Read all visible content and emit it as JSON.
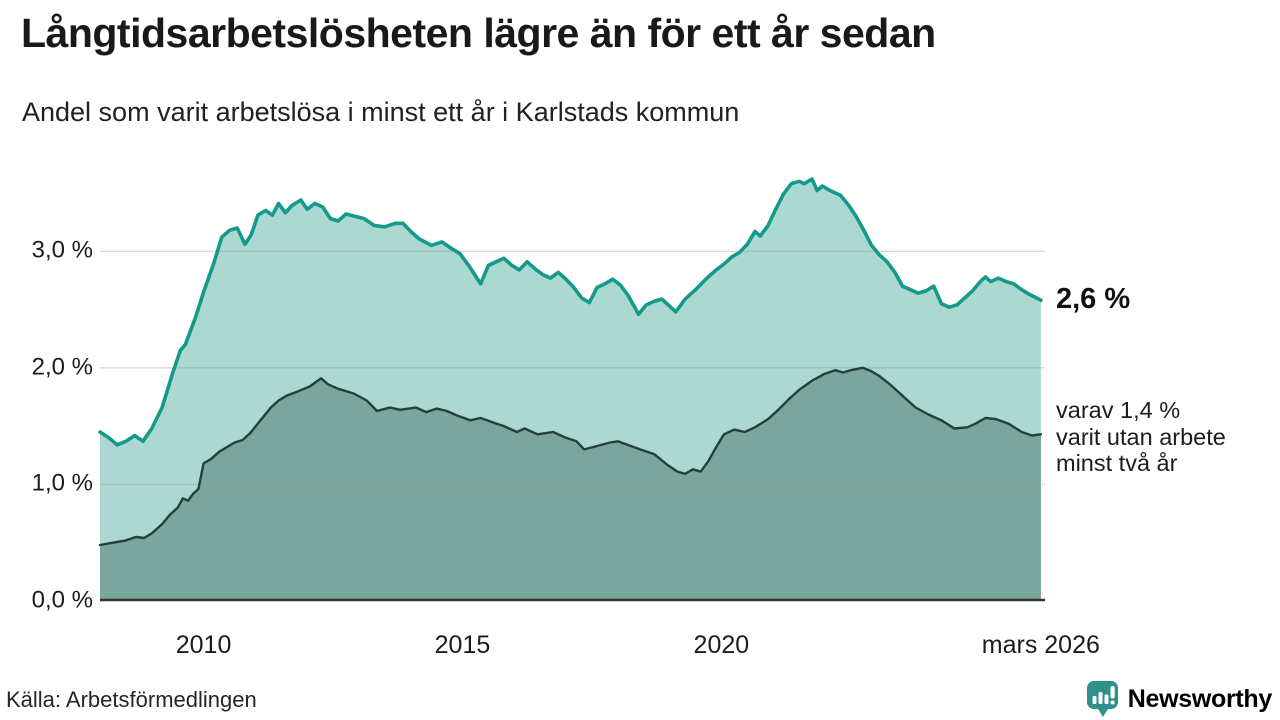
{
  "header": {
    "title": "Långtidsarbetslösheten lägre än för ett år sedan",
    "subtitle": "Andel som varit arbetslösa i minst ett år i Karlstads kommun"
  },
  "annotations": {
    "total_label": "2,6 %",
    "subset_label": "varav 1,4 %\nvarit utan arbete\nminst två år"
  },
  "footer": {
    "source": "Källa: Arbetsförmedlingen",
    "brand": "Newsworthy"
  },
  "logo": {
    "color": "#2e9088"
  },
  "chart_data": {
    "type": "area",
    "title": "Långtidsarbetslösheten lägre än för ett år sedan",
    "subtitle": "Andel som varit arbetslösa i minst ett år i Karlstads kommun",
    "unit": "%",
    "xlim": [
      2008.0,
      2026.25
    ],
    "ylim": [
      0,
      3.74
    ],
    "grid": true,
    "grid_color": "#9e9e9e",
    "axis_color": "#333333",
    "x_ticks": [
      {
        "label": "2010",
        "year": 2010
      },
      {
        "label": "2015",
        "year": 2015
      },
      {
        "label": "2020",
        "year": 2020
      },
      {
        "label": "mars 2026",
        "year": 2026.17
      }
    ],
    "y_ticks": [
      {
        "label": "0,0 %",
        "value": 0
      },
      {
        "label": "1,0 %",
        "value": 1
      },
      {
        "label": "2,0 %",
        "value": 2
      },
      {
        "label": "3,0 %",
        "value": 3
      }
    ],
    "series": [
      {
        "name": "Arbetslösa minst ett år",
        "end_value": "2,6 %",
        "stroke": "#15998c",
        "fill": "#abd8d1",
        "points": [
          [
            2008.0,
            1.45
          ],
          [
            2008.17,
            1.4
          ],
          [
            2008.33,
            1.34
          ],
          [
            2008.5,
            1.37
          ],
          [
            2008.67,
            1.42
          ],
          [
            2008.83,
            1.37
          ],
          [
            2009.0,
            1.48
          ],
          [
            2009.2,
            1.66
          ],
          [
            2009.4,
            1.95
          ],
          [
            2009.55,
            2.15
          ],
          [
            2009.65,
            2.2
          ],
          [
            2009.85,
            2.44
          ],
          [
            2010.0,
            2.65
          ],
          [
            2010.2,
            2.9
          ],
          [
            2010.35,
            3.12
          ],
          [
            2010.5,
            3.18
          ],
          [
            2010.65,
            3.2
          ],
          [
            2010.8,
            3.06
          ],
          [
            2010.92,
            3.14
          ],
          [
            2011.05,
            3.31
          ],
          [
            2011.2,
            3.35
          ],
          [
            2011.33,
            3.31
          ],
          [
            2011.45,
            3.41
          ],
          [
            2011.58,
            3.33
          ],
          [
            2011.7,
            3.39
          ],
          [
            2011.88,
            3.44
          ],
          [
            2012.0,
            3.36
          ],
          [
            2012.15,
            3.41
          ],
          [
            2012.3,
            3.38
          ],
          [
            2012.45,
            3.28
          ],
          [
            2012.6,
            3.26
          ],
          [
            2012.75,
            3.32
          ],
          [
            2012.92,
            3.3
          ],
          [
            2013.1,
            3.28
          ],
          [
            2013.3,
            3.22
          ],
          [
            2013.5,
            3.21
          ],
          [
            2013.7,
            3.24
          ],
          [
            2013.85,
            3.24
          ],
          [
            2014.0,
            3.17
          ],
          [
            2014.15,
            3.11
          ],
          [
            2014.4,
            3.05
          ],
          [
            2014.6,
            3.08
          ],
          [
            2014.8,
            3.02
          ],
          [
            2014.95,
            2.98
          ],
          [
            2015.15,
            2.86
          ],
          [
            2015.35,
            2.72
          ],
          [
            2015.5,
            2.88
          ],
          [
            2015.65,
            2.91
          ],
          [
            2015.8,
            2.94
          ],
          [
            2015.95,
            2.88
          ],
          [
            2016.1,
            2.84
          ],
          [
            2016.25,
            2.91
          ],
          [
            2016.4,
            2.85
          ],
          [
            2016.55,
            2.8
          ],
          [
            2016.7,
            2.77
          ],
          [
            2016.85,
            2.82
          ],
          [
            2017.0,
            2.76
          ],
          [
            2017.15,
            2.69
          ],
          [
            2017.3,
            2.6
          ],
          [
            2017.45,
            2.56
          ],
          [
            2017.6,
            2.69
          ],
          [
            2017.75,
            2.72
          ],
          [
            2017.9,
            2.76
          ],
          [
            2018.05,
            2.71
          ],
          [
            2018.2,
            2.62
          ],
          [
            2018.4,
            2.46
          ],
          [
            2018.55,
            2.54
          ],
          [
            2018.7,
            2.57
          ],
          [
            2018.85,
            2.59
          ],
          [
            2019.0,
            2.53
          ],
          [
            2019.12,
            2.48
          ],
          [
            2019.3,
            2.59
          ],
          [
            2019.5,
            2.67
          ],
          [
            2019.7,
            2.76
          ],
          [
            2019.9,
            2.84
          ],
          [
            2020.05,
            2.89
          ],
          [
            2020.2,
            2.95
          ],
          [
            2020.35,
            2.99
          ],
          [
            2020.5,
            3.06
          ],
          [
            2020.65,
            3.17
          ],
          [
            2020.75,
            3.13
          ],
          [
            2020.9,
            3.22
          ],
          [
            2021.05,
            3.36
          ],
          [
            2021.2,
            3.49
          ],
          [
            2021.35,
            3.58
          ],
          [
            2021.5,
            3.6
          ],
          [
            2021.6,
            3.58
          ],
          [
            2021.75,
            3.62
          ],
          [
            2021.85,
            3.52
          ],
          [
            2021.95,
            3.56
          ],
          [
            2022.1,
            3.52
          ],
          [
            2022.3,
            3.48
          ],
          [
            2022.45,
            3.4
          ],
          [
            2022.6,
            3.3
          ],
          [
            2022.75,
            3.18
          ],
          [
            2022.9,
            3.05
          ],
          [
            2023.05,
            2.97
          ],
          [
            2023.2,
            2.91
          ],
          [
            2023.35,
            2.82
          ],
          [
            2023.5,
            2.7
          ],
          [
            2023.65,
            2.67
          ],
          [
            2023.8,
            2.64
          ],
          [
            2023.95,
            2.66
          ],
          [
            2024.1,
            2.7
          ],
          [
            2024.25,
            2.55
          ],
          [
            2024.4,
            2.52
          ],
          [
            2024.55,
            2.54
          ],
          [
            2024.7,
            2.6
          ],
          [
            2024.85,
            2.66
          ],
          [
            2025.0,
            2.74
          ],
          [
            2025.1,
            2.78
          ],
          [
            2025.2,
            2.74
          ],
          [
            2025.35,
            2.77
          ],
          [
            2025.5,
            2.74
          ],
          [
            2025.65,
            2.72
          ],
          [
            2025.8,
            2.67
          ],
          [
            2025.95,
            2.63
          ],
          [
            2026.17,
            2.58
          ]
        ]
      },
      {
        "name": "Utan arbete minst två år",
        "end_value": "1,4 %",
        "stroke": "#21413b",
        "fill": "#7ba69d",
        "points": [
          [
            2008.0,
            0.48
          ],
          [
            2008.25,
            0.5
          ],
          [
            2008.5,
            0.52
          ],
          [
            2008.7,
            0.55
          ],
          [
            2008.85,
            0.54
          ],
          [
            2009.0,
            0.58
          ],
          [
            2009.2,
            0.66
          ],
          [
            2009.35,
            0.74
          ],
          [
            2009.5,
            0.8
          ],
          [
            2009.6,
            0.88
          ],
          [
            2009.7,
            0.86
          ],
          [
            2009.8,
            0.92
          ],
          [
            2009.9,
            0.96
          ],
          [
            2010.0,
            1.18
          ],
          [
            2010.15,
            1.22
          ],
          [
            2010.3,
            1.28
          ],
          [
            2010.45,
            1.32
          ],
          [
            2010.6,
            1.36
          ],
          [
            2010.75,
            1.38
          ],
          [
            2010.9,
            1.44
          ],
          [
            2011.1,
            1.55
          ],
          [
            2011.3,
            1.66
          ],
          [
            2011.45,
            1.72
          ],
          [
            2011.6,
            1.76
          ],
          [
            2011.83,
            1.8
          ],
          [
            2012.05,
            1.84
          ],
          [
            2012.27,
            1.91
          ],
          [
            2012.4,
            1.86
          ],
          [
            2012.6,
            1.82
          ],
          [
            2012.9,
            1.78
          ],
          [
            2013.15,
            1.72
          ],
          [
            2013.35,
            1.63
          ],
          [
            2013.6,
            1.66
          ],
          [
            2013.8,
            1.64
          ],
          [
            2014.1,
            1.66
          ],
          [
            2014.3,
            1.62
          ],
          [
            2014.5,
            1.65
          ],
          [
            2014.7,
            1.63
          ],
          [
            2014.9,
            1.59
          ],
          [
            2015.15,
            1.55
          ],
          [
            2015.35,
            1.57
          ],
          [
            2015.6,
            1.53
          ],
          [
            2015.8,
            1.5
          ],
          [
            2016.05,
            1.45
          ],
          [
            2016.2,
            1.48
          ],
          [
            2016.45,
            1.43
          ],
          [
            2016.75,
            1.45
          ],
          [
            2017.0,
            1.4
          ],
          [
            2017.2,
            1.37
          ],
          [
            2017.35,
            1.3
          ],
          [
            2017.6,
            1.33
          ],
          [
            2017.85,
            1.36
          ],
          [
            2018.0,
            1.37
          ],
          [
            2018.25,
            1.33
          ],
          [
            2018.5,
            1.29
          ],
          [
            2018.7,
            1.26
          ],
          [
            2018.95,
            1.17
          ],
          [
            2019.15,
            1.11
          ],
          [
            2019.3,
            1.09
          ],
          [
            2019.45,
            1.13
          ],
          [
            2019.6,
            1.11
          ],
          [
            2019.75,
            1.2
          ],
          [
            2019.9,
            1.32
          ],
          [
            2020.05,
            1.43
          ],
          [
            2020.25,
            1.47
          ],
          [
            2020.45,
            1.45
          ],
          [
            2020.65,
            1.49
          ],
          [
            2020.9,
            1.56
          ],
          [
            2021.1,
            1.64
          ],
          [
            2021.3,
            1.73
          ],
          [
            2021.5,
            1.81
          ],
          [
            2021.75,
            1.89
          ],
          [
            2022.0,
            1.95
          ],
          [
            2022.2,
            1.98
          ],
          [
            2022.35,
            1.96
          ],
          [
            2022.5,
            1.98
          ],
          [
            2022.73,
            2.0
          ],
          [
            2022.9,
            1.97
          ],
          [
            2023.05,
            1.93
          ],
          [
            2023.25,
            1.86
          ],
          [
            2023.5,
            1.76
          ],
          [
            2023.75,
            1.66
          ],
          [
            2024.0,
            1.6
          ],
          [
            2024.25,
            1.55
          ],
          [
            2024.5,
            1.48
          ],
          [
            2024.75,
            1.49
          ],
          [
            2024.9,
            1.52
          ],
          [
            2025.1,
            1.57
          ],
          [
            2025.3,
            1.56
          ],
          [
            2025.55,
            1.52
          ],
          [
            2025.8,
            1.45
          ],
          [
            2026.0,
            1.42
          ],
          [
            2026.17,
            1.43
          ]
        ]
      }
    ]
  }
}
